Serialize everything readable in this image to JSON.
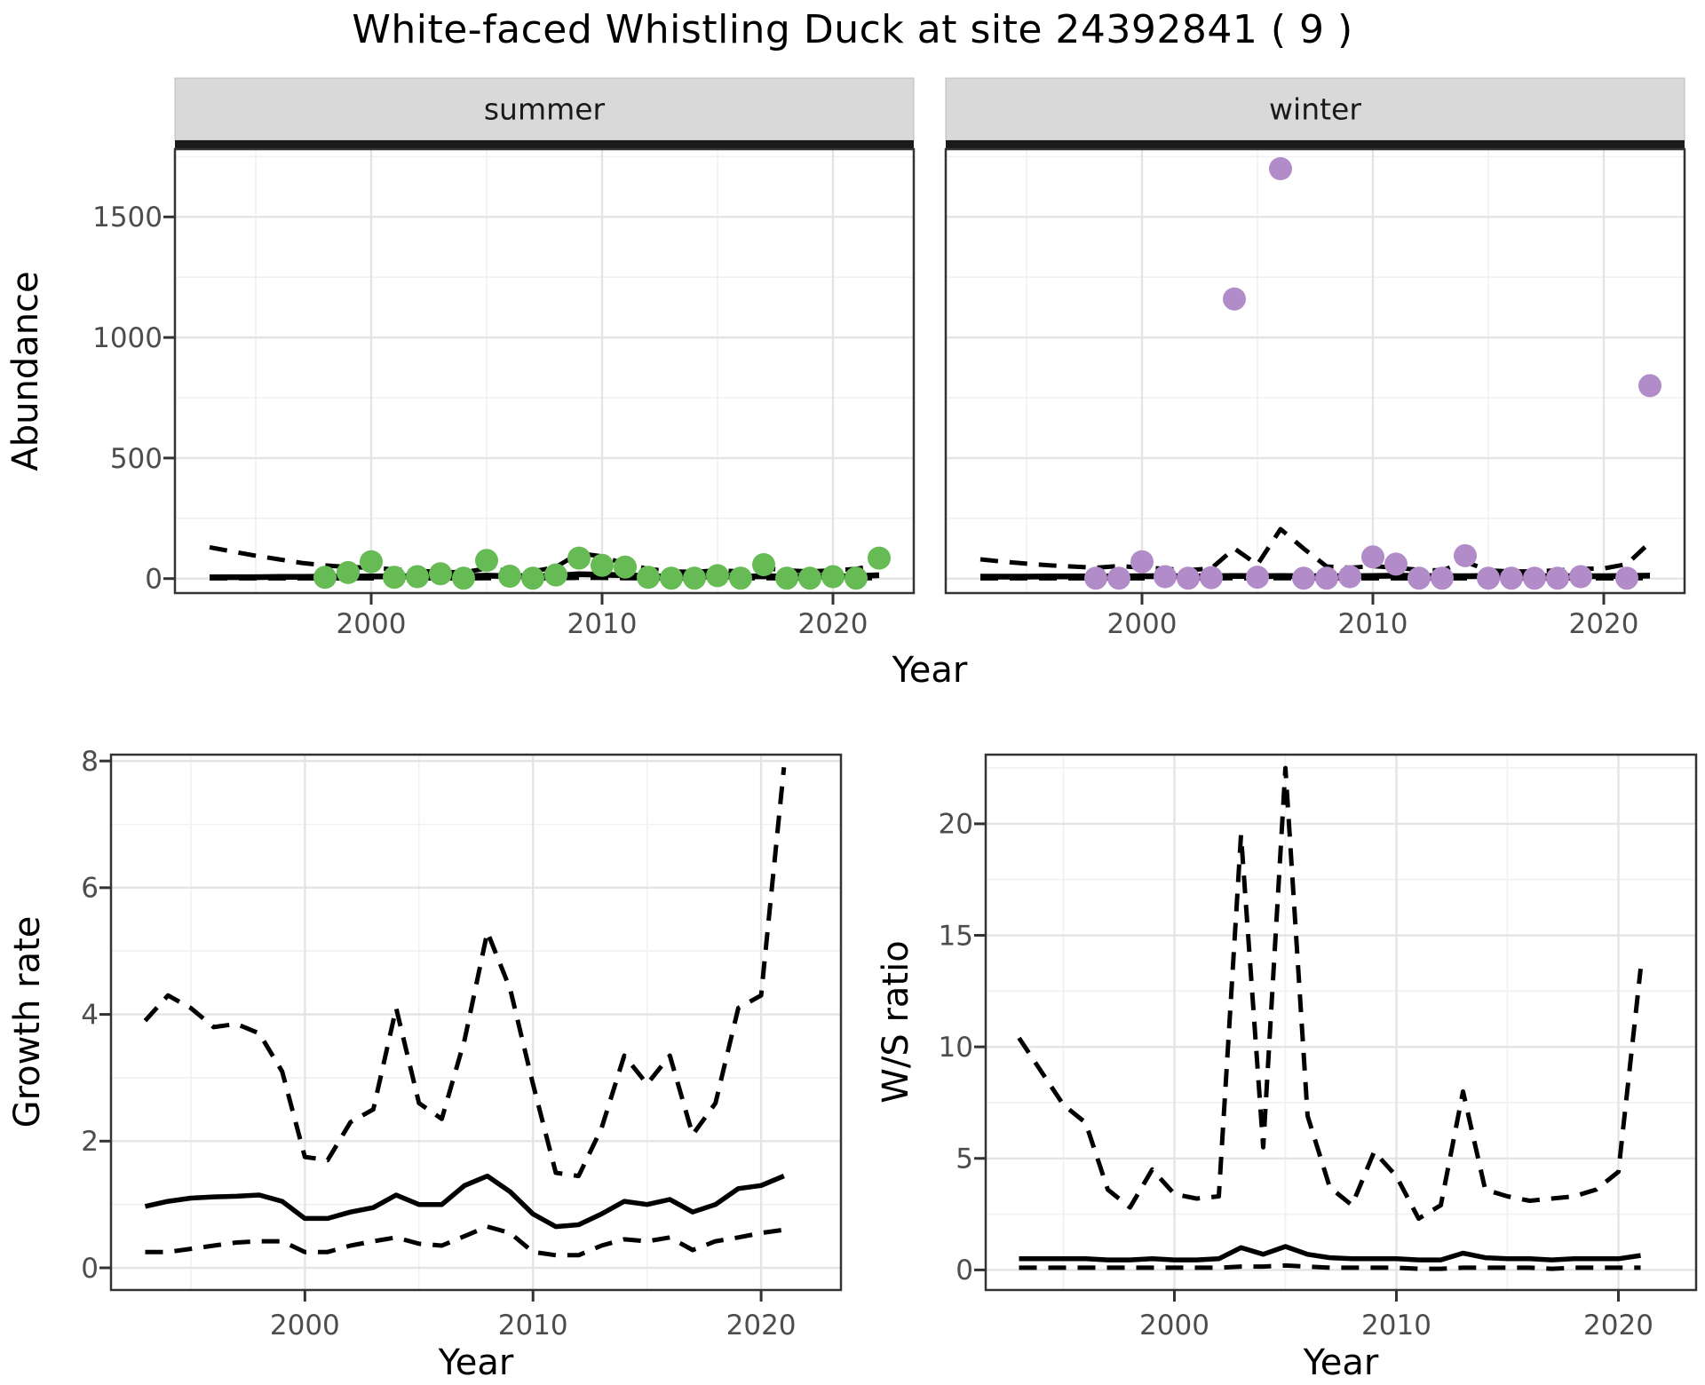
{
  "title": "White-faced Whistling Duck at site 24392841 ( 9 )",
  "figure": {
    "colors": {
      "summer_point": "#66BB55",
      "winter_point": "#B18CC8",
      "line": "#000000",
      "grid_major": "#E4E4E4",
      "grid_minor": "#F1F1F1",
      "strip_bg": "#D9D9D9",
      "strip_bar": "#1A1A1A",
      "panel_border": "#333333",
      "axis_text": "#4D4D4D",
      "axis_title": "#000000"
    }
  },
  "chart_data": [
    {
      "type": "scatter",
      "name": "abundance-by-season",
      "xlabel": "Year",
      "ylabel": "Abundance",
      "xlim": [
        1991.5,
        2023.5
      ],
      "ylim": [
        -60,
        1781
      ],
      "xticks": [
        2000,
        2010,
        2020
      ],
      "xticks_minor": [
        1995,
        2005,
        2015
      ],
      "yticks": [
        0,
        500,
        1000,
        1500
      ],
      "yticks_minor": [
        250,
        750,
        1250,
        1750
      ],
      "line_years": [
        1993,
        1994,
        1995,
        1996,
        1997,
        1998,
        1999,
        2000,
        2001,
        2002,
        2003,
        2004,
        2005,
        2006,
        2007,
        2008,
        2009,
        2010,
        2011,
        2012,
        2013,
        2014,
        2015,
        2016,
        2017,
        2018,
        2019,
        2020,
        2021,
        2022
      ],
      "facets": [
        {
          "label": "summer",
          "point_color": "#66BB55",
          "points": {
            "x": [
              1998,
              1999,
              2000,
              2001,
              2002,
              2003,
              2004,
              2005,
              2006,
              2007,
              2008,
              2009,
              2010,
              2011,
              2012,
              2013,
              2014,
              2015,
              2016,
              2017,
              2018,
              2019,
              2020,
              2021,
              2022
            ],
            "y": [
              5,
              25,
              70,
              5,
              8,
              20,
              2,
              75,
              10,
              2,
              15,
              85,
              55,
              48,
              5,
              2,
              2,
              12,
              2,
              58,
              2,
              2,
              8,
              2,
              85
            ]
          },
          "upper_ci": [
            130,
            112,
            95,
            80,
            65,
            55,
            48,
            45,
            38,
            32,
            28,
            26,
            42,
            32,
            30,
            48,
            105,
            92,
            60,
            40,
            30,
            28,
            34,
            30,
            44,
            34,
            30,
            34,
            40,
            58
          ],
          "fit": [
            5,
            6,
            6,
            7,
            7,
            8,
            8,
            9,
            9,
            10,
            10,
            10,
            12,
            10,
            10,
            12,
            18,
            16,
            14,
            10,
            8,
            8,
            9,
            8,
            10,
            8,
            8,
            9,
            10,
            14
          ],
          "lower_ci": [
            1,
            1,
            1,
            1,
            1,
            1,
            1,
            1,
            1,
            1,
            1,
            1,
            2,
            1,
            1,
            2,
            3,
            3,
            2,
            1,
            1,
            1,
            1,
            1,
            2,
            1,
            1,
            1,
            1,
            2
          ]
        },
        {
          "label": "winter",
          "point_color": "#B18CC8",
          "points": {
            "x": [
              1998,
              1999,
              2000,
              2001,
              2002,
              2003,
              2004,
              2005,
              2006,
              2007,
              2008,
              2009,
              2010,
              2011,
              2012,
              2013,
              2014,
              2015,
              2016,
              2017,
              2018,
              2019,
              2021,
              2022
            ],
            "y": [
              2,
              2,
              70,
              8,
              2,
              4,
              1160,
              6,
              1700,
              2,
              2,
              8,
              90,
              60,
              2,
              2,
              95,
              2,
              2,
              2,
              2,
              8,
              2,
              800
            ]
          },
          "upper_ci": [
            80,
            70,
            62,
            55,
            50,
            45,
            52,
            46,
            40,
            35,
            42,
            125,
            58,
            205,
            125,
            50,
            45,
            52,
            45,
            36,
            34,
            70,
            34,
            30,
            30,
            34,
            40,
            42,
            60,
            150
          ],
          "fit": [
            8,
            8,
            8,
            9,
            9,
            9,
            9,
            10,
            10,
            10,
            10,
            11,
            10,
            11,
            10,
            10,
            10,
            11,
            12,
            11,
            10,
            10,
            11,
            10,
            10,
            10,
            10,
            10,
            11,
            12
          ],
          "lower_ci": [
            1,
            1,
            1,
            1,
            1,
            1,
            1,
            1,
            1,
            1,
            1,
            2,
            1,
            2,
            2,
            1,
            1,
            1,
            1,
            1,
            1,
            1,
            1,
            1,
            1,
            1,
            1,
            1,
            1,
            2
          ]
        }
      ]
    },
    {
      "type": "line",
      "name": "growth-rate",
      "xlabel": "Year",
      "ylabel": "Growth rate",
      "xlim": [
        1991.5,
        2023.5
      ],
      "ylim": [
        -0.35,
        8.1
      ],
      "xticks": [
        2000,
        2010,
        2020
      ],
      "xticks_minor": [
        1995,
        2005,
        2015
      ],
      "yticks": [
        0,
        2,
        4,
        6,
        8
      ],
      "yticks_minor": [
        1,
        3,
        5,
        7
      ],
      "x": [
        1993,
        1994,
        1995,
        1996,
        1997,
        1998,
        1999,
        2000,
        2001,
        2002,
        2003,
        2004,
        2005,
        2006,
        2007,
        2008,
        2009,
        2010,
        2011,
        2012,
        2013,
        2014,
        2015,
        2016,
        2017,
        2018,
        2019,
        2020,
        2021
      ],
      "series": [
        {
          "name": "estimate",
          "style": "solid",
          "values": [
            0.97,
            1.05,
            1.1,
            1.12,
            1.13,
            1.15,
            1.05,
            0.78,
            0.78,
            0.88,
            0.95,
            1.15,
            1.0,
            1.0,
            1.3,
            1.45,
            1.2,
            0.85,
            0.65,
            0.68,
            0.85,
            1.05,
            1.0,
            1.08,
            0.88,
            1.0,
            1.25,
            1.3,
            1.45
          ]
        },
        {
          "name": "upper-ci",
          "style": "dashed",
          "values": [
            3.9,
            4.3,
            4.1,
            3.8,
            3.85,
            3.7,
            3.1,
            1.75,
            1.7,
            2.3,
            2.5,
            4.1,
            2.6,
            2.35,
            3.6,
            5.3,
            4.4,
            2.9,
            1.5,
            1.45,
            2.2,
            3.35,
            2.9,
            3.35,
            2.1,
            2.6,
            4.1,
            4.3,
            7.9
          ]
        },
        {
          "name": "lower-ci",
          "style": "dashed",
          "values": [
            0.25,
            0.25,
            0.3,
            0.35,
            0.4,
            0.42,
            0.42,
            0.25,
            0.25,
            0.35,
            0.42,
            0.48,
            0.38,
            0.35,
            0.5,
            0.65,
            0.55,
            0.25,
            0.2,
            0.2,
            0.35,
            0.45,
            0.42,
            0.48,
            0.28,
            0.42,
            0.48,
            0.55,
            0.6
          ]
        }
      ]
    },
    {
      "type": "line",
      "name": "winter-summer-ratio",
      "xlabel": "Year",
      "ylabel": "W/S ratio",
      "xlim": [
        1991.5,
        2023.5
      ],
      "ylim": [
        -0.9,
        23.1
      ],
      "xticks": [
        2000,
        2010,
        2020
      ],
      "xticks_minor": [
        1995,
        2005,
        2015
      ],
      "yticks": [
        0,
        5,
        10,
        15,
        20
      ],
      "yticks_minor": [
        2.5,
        7.5,
        12.5,
        17.5,
        22.5
      ],
      "x": [
        1993,
        1994,
        1995,
        1996,
        1997,
        1998,
        1999,
        2000,
        2001,
        2002,
        2003,
        2004,
        2005,
        2006,
        2007,
        2008,
        2009,
        2010,
        2011,
        2012,
        2013,
        2014,
        2015,
        2016,
        2017,
        2018,
        2019,
        2020,
        2021
      ],
      "series": [
        {
          "name": "estimate",
          "style": "solid",
          "values": [
            0.5,
            0.5,
            0.5,
            0.5,
            0.45,
            0.45,
            0.5,
            0.45,
            0.45,
            0.5,
            1.0,
            0.7,
            1.05,
            0.7,
            0.55,
            0.5,
            0.5,
            0.5,
            0.45,
            0.45,
            0.75,
            0.55,
            0.5,
            0.5,
            0.45,
            0.5,
            0.5,
            0.5,
            0.65
          ]
        },
        {
          "name": "upper-ci",
          "style": "dashed",
          "values": [
            10.4,
            8.9,
            7.4,
            6.6,
            3.6,
            2.8,
            4.5,
            3.4,
            3.2,
            3.3,
            19.5,
            5.5,
            22.5,
            6.9,
            3.7,
            2.9,
            5.3,
            4.2,
            2.3,
            2.9,
            8.0,
            3.6,
            3.3,
            3.1,
            3.2,
            3.3,
            3.6,
            4.4,
            13.5
          ]
        },
        {
          "name": "lower-ci",
          "style": "dashed",
          "values": [
            0.1,
            0.1,
            0.1,
            0.1,
            0.1,
            0.1,
            0.1,
            0.1,
            0.1,
            0.1,
            0.15,
            0.15,
            0.2,
            0.15,
            0.1,
            0.1,
            0.1,
            0.1,
            0.05,
            0.05,
            0.1,
            0.1,
            0.1,
            0.1,
            0.05,
            0.1,
            0.1,
            0.1,
            0.1
          ]
        }
      ]
    }
  ]
}
